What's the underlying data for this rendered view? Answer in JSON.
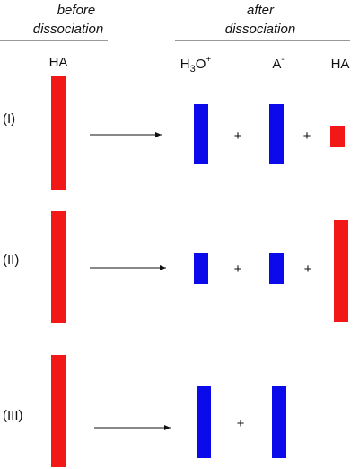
{
  "before_header": [
    "before",
    "dissociation"
  ],
  "after_header": [
    "after",
    "dissociation"
  ],
  "before_species": "HA",
  "after_species": {
    "h3o": {
      "base": "H",
      "sub": "3",
      "rest": "O",
      "sup": "+"
    },
    "a": {
      "base": "A",
      "sup": "-"
    },
    "ha": "HA"
  },
  "rows": [
    {
      "label": "(I)",
      "plus": [
        "+",
        "+"
      ]
    },
    {
      "label": "(II)",
      "plus": [
        "+",
        "+"
      ]
    },
    {
      "label": "(III)",
      "plus": [
        "+"
      ]
    }
  ]
}
